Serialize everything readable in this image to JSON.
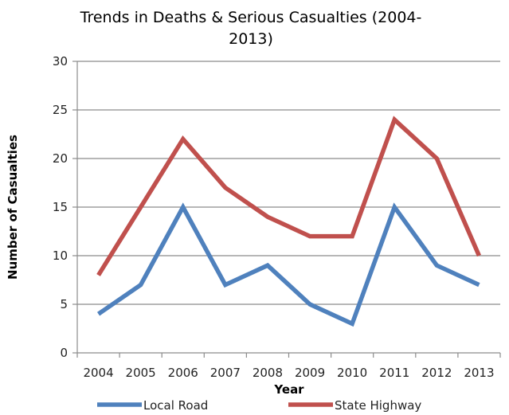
{
  "chart_data": {
    "type": "line",
    "title_lines": [
      "Trends in Deaths & Serious Casualties (2004-",
      "2013)"
    ],
    "xlabel": "Year",
    "ylabel": "Number of Casualties",
    "categories": [
      "2004",
      "2005",
      "2006",
      "2007",
      "2008",
      "2009",
      "2010",
      "2011",
      "2012",
      "2013"
    ],
    "ylim": [
      0,
      30
    ],
    "yticks": [
      0,
      5,
      10,
      15,
      20,
      25,
      30
    ],
    "grid": true,
    "legend_position": "bottom",
    "series": [
      {
        "name": "Local Road",
        "color": "#4F81BD",
        "values": [
          4,
          7,
          15,
          7,
          9,
          5,
          3,
          15,
          9,
          7
        ]
      },
      {
        "name": "State Highway",
        "color": "#C0504D",
        "values": [
          8,
          15,
          22,
          17,
          14,
          12,
          12,
          24,
          20,
          10
        ]
      }
    ]
  }
}
